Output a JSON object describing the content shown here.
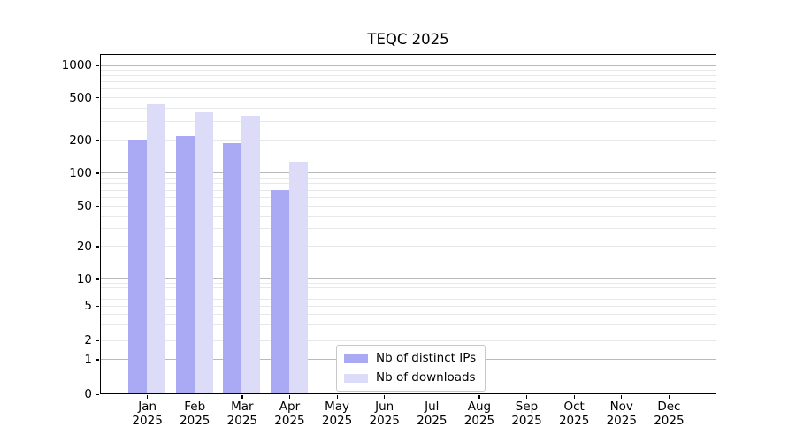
{
  "chart_data": {
    "type": "bar",
    "title": "TEQC 2025",
    "categories": [
      "Jan",
      "Feb",
      "Mar",
      "Apr",
      "May",
      "Jun",
      "Jul",
      "Aug",
      "Sep",
      "Oct",
      "Nov",
      "Dec"
    ],
    "category_year": "2025",
    "series": [
      {
        "name": "Nb of distinct IPs",
        "color": "#a9a9f4",
        "values": [
          205,
          220,
          190,
          70,
          0,
          0,
          0,
          0,
          0,
          0,
          0,
          0
        ]
      },
      {
        "name": "Nb of downloads",
        "color": "#dcdcf9",
        "values": [
          430,
          365,
          340,
          128,
          0,
          0,
          0,
          0,
          0,
          0,
          0,
          0
        ]
      }
    ],
    "y_axis": {
      "scale": "symlog",
      "tick_values": [
        0,
        1,
        2,
        5,
        10,
        20,
        50,
        100,
        200,
        500,
        1000
      ],
      "range": [
        0,
        1000
      ],
      "major_grid_values": [
        1,
        10,
        100,
        1000
      ],
      "minor_grid_mantissas": [
        2,
        3,
        4,
        5,
        6,
        7,
        8,
        9
      ]
    },
    "x_axis": {
      "months_shown": 12
    },
    "legend": {
      "position": "bottom-center",
      "entries": [
        "Nb of distinct IPs",
        "Nb of downloads"
      ]
    },
    "grid": {
      "orientation": "horizontal",
      "major_color": "#b9b9b9",
      "minor_color": "#e8e8e8"
    }
  }
}
